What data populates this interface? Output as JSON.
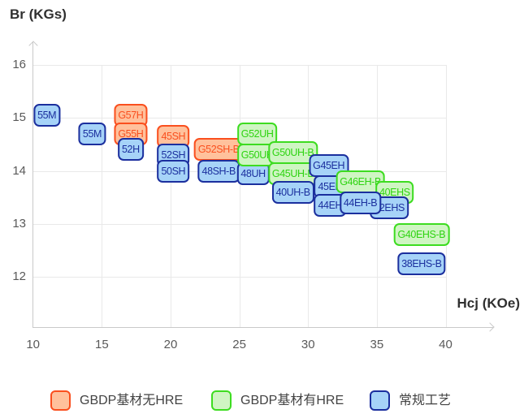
{
  "chart_data": {
    "type": "scatter",
    "title": "",
    "xlabel": "Hcj (KOe)",
    "ylabel": "Br (KGs)",
    "x_ticks": [
      10,
      15,
      20,
      25,
      30,
      35,
      40
    ],
    "y_ticks": [
      16,
      15,
      14,
      13,
      12
    ],
    "xlim": [
      10,
      43.5
    ],
    "ylim": [
      11.1,
      16.4
    ],
    "grid": true,
    "legend_position": "bottom",
    "series": [
      {
        "key": "orange",
        "name": "GBDP基材无HRE",
        "fill": "#ffc19c",
        "stroke": "#fa4f1e",
        "text": "#fa4f1e"
      },
      {
        "key": "green",
        "name": "GBDP基材有HRE",
        "fill": "#cff5c3",
        "stroke": "#3ddc20",
        "text": "#2ed411"
      },
      {
        "key": "blue",
        "name": "常规工艺",
        "fill": "#a6d3f8",
        "stroke": "#1b2f9e",
        "text": "#1b2f9e"
      }
    ],
    "points": [
      {
        "label": "55M",
        "x": 11.0,
        "y": 15.05,
        "series": "blue"
      },
      {
        "label": "55M",
        "x": 14.3,
        "y": 14.7,
        "series": "blue"
      },
      {
        "label": "G57H",
        "x": 17.1,
        "y": 15.05,
        "series": "orange"
      },
      {
        "label": "G55H",
        "x": 17.1,
        "y": 14.7,
        "series": "orange"
      },
      {
        "label": "52H",
        "x": 17.1,
        "y": 14.4,
        "series": "blue"
      },
      {
        "label": "45SH",
        "x": 20.2,
        "y": 14.65,
        "series": "orange"
      },
      {
        "label": "52SH",
        "x": 20.2,
        "y": 14.3,
        "series": "blue"
      },
      {
        "label": "50SH",
        "x": 20.2,
        "y": 14.0,
        "series": "blue"
      },
      {
        "label": "G52SH-B",
        "x": 23.5,
        "y": 14.4,
        "series": "orange"
      },
      {
        "label": "48SH-B",
        "x": 23.5,
        "y": 14.0,
        "series": "blue"
      },
      {
        "label": "48UH",
        "x": 26.0,
        "y": 13.95,
        "series": "blue"
      },
      {
        "label": "G52UH",
        "x": 26.3,
        "y": 14.7,
        "series": "green"
      },
      {
        "label": "G50UH",
        "x": 26.3,
        "y": 14.3,
        "series": "green"
      },
      {
        "label": "G50UH-B",
        "x": 28.9,
        "y": 14.35,
        "series": "green"
      },
      {
        "label": "G45UH-B",
        "x": 28.9,
        "y": 13.95,
        "series": "green"
      },
      {
        "label": "40UH-B",
        "x": 28.9,
        "y": 13.6,
        "series": "blue"
      },
      {
        "label": "G45EH",
        "x": 31.5,
        "y": 14.1,
        "series": "blue"
      },
      {
        "label": "45EH",
        "x": 31.6,
        "y": 13.7,
        "series": "blue"
      },
      {
        "label": "44EH",
        "x": 31.6,
        "y": 13.35,
        "series": "blue"
      },
      {
        "label": "G46EH-B",
        "x": 33.8,
        "y": 13.8,
        "series": "green"
      },
      {
        "label": "40EHS",
        "x": 36.3,
        "y": 13.6,
        "series": "green"
      },
      {
        "label": "42EHS",
        "x": 35.9,
        "y": 13.3,
        "series": "blue"
      },
      {
        "label": "44EH-B",
        "x": 33.8,
        "y": 13.4,
        "series": "blue"
      },
      {
        "label": "G40EHS-B",
        "x": 38.25,
        "y": 12.8,
        "series": "green"
      },
      {
        "label": "38EHS-B",
        "x": 38.25,
        "y": 12.25,
        "series": "blue"
      }
    ]
  },
  "legend": {
    "items": [
      {
        "label": "GBDP基材无HRE",
        "series": "orange"
      },
      {
        "label": "GBDP基材有HRE",
        "series": "green"
      },
      {
        "label": "常规工艺",
        "series": "blue"
      }
    ]
  },
  "palette": {
    "background": "#ffffff",
    "axis_line": "#c9c9c9",
    "gridline": "#e9e9e9",
    "tick_text": "#595959",
    "axis_title_text": "#303030",
    "legend_text": "#434343"
  }
}
